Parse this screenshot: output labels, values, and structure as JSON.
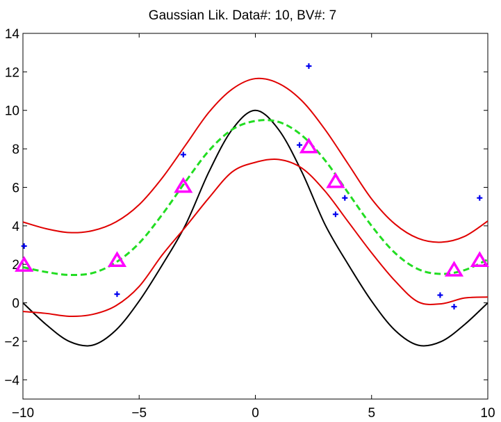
{
  "chart_data": {
    "type": "line",
    "title": "Gaussian Lik.  Data#: 10, BV#: 7",
    "xlabel": "",
    "ylabel": "",
    "xlim": [
      -10,
      10
    ],
    "ylim": [
      -5,
      14
    ],
    "xticks": [
      -10,
      -5,
      0,
      5,
      10
    ],
    "xtick_labels": [
      "−10",
      "−5",
      "0",
      "5",
      "10"
    ],
    "yticks": [
      -4,
      -2,
      0,
      2,
      4,
      6,
      8,
      10,
      12,
      14
    ],
    "ytick_labels": [
      "−4",
      "−2",
      "0",
      "2",
      "4",
      "6",
      "8",
      "10",
      "12",
      "14"
    ],
    "grid": false,
    "colors": {
      "true_function": "#000000",
      "confidence_bounds": "#e00000",
      "predictive_mean": "#22dd22",
      "data_points": "#0000ee",
      "basis_vectors": "#ff00ff"
    },
    "series": [
      {
        "name": "true function",
        "style": "solid",
        "color": "#000000",
        "x": [
          -10,
          -9,
          -8,
          -7,
          -6,
          -5,
          -4,
          -3,
          -2,
          -1,
          0,
          1,
          2,
          3,
          4,
          5,
          6,
          7,
          8,
          9,
          10
        ],
        "y": [
          0.0,
          -1.13,
          -2.01,
          -2.2,
          -1.42,
          0.09,
          1.98,
          4.06,
          6.8,
          9.0,
          10.0,
          9.0,
          6.8,
          4.06,
          1.98,
          0.09,
          -1.42,
          -2.2,
          -2.01,
          -1.13,
          0.0
        ]
      },
      {
        "name": "upper bound",
        "style": "solid",
        "color": "#e00000",
        "x": [
          -10,
          -9,
          -8,
          -7,
          -6,
          -5,
          -4,
          -3,
          -2,
          -1,
          0,
          1,
          2,
          3,
          4,
          5,
          6,
          7,
          8,
          9,
          10
        ],
        "y": [
          4.2,
          3.85,
          3.65,
          3.75,
          4.2,
          5.1,
          6.5,
          8.2,
          9.9,
          11.1,
          11.65,
          11.4,
          10.5,
          9.0,
          7.2,
          5.4,
          4.1,
          3.35,
          3.15,
          3.45,
          4.25
        ]
      },
      {
        "name": "lower bound",
        "style": "solid",
        "color": "#e00000",
        "x": [
          -10,
          -9,
          -8,
          -7,
          -6,
          -5,
          -4,
          -3,
          -2,
          -1,
          0,
          1,
          2,
          3,
          4,
          5,
          6,
          7,
          8,
          9,
          10
        ],
        "y": [
          -0.45,
          -0.55,
          -0.7,
          -0.6,
          -0.15,
          0.85,
          2.5,
          3.95,
          5.45,
          6.8,
          7.3,
          7.45,
          7.0,
          5.8,
          4.2,
          2.6,
          1.15,
          0.05,
          -0.05,
          0.25,
          0.3
        ]
      },
      {
        "name": "predictive mean",
        "style": "dashed",
        "color": "#22dd22",
        "x": [
          -10,
          -9,
          -8,
          -7,
          -6,
          -5,
          -4,
          -3,
          -2,
          -1,
          0,
          1,
          2,
          3,
          4,
          5,
          6,
          7,
          8,
          9,
          10
        ],
        "y": [
          1.85,
          1.6,
          1.45,
          1.55,
          2.1,
          3.1,
          4.6,
          6.3,
          7.9,
          9.0,
          9.45,
          9.4,
          8.7,
          7.4,
          5.7,
          4.0,
          2.6,
          1.75,
          1.5,
          1.7,
          2.25
        ]
      }
    ],
    "points": [
      {
        "name": "data points",
        "marker": "+",
        "color": "#0000ee",
        "x": [
          -9.95,
          -5.95,
          -3.1,
          1.9,
          2.3,
          3.45,
          3.85,
          7.95,
          8.55,
          9.65
        ],
        "y": [
          2.95,
          0.45,
          7.7,
          8.2,
          12.3,
          4.6,
          5.45,
          0.4,
          -0.2,
          5.45
        ]
      },
      {
        "name": "basis vectors",
        "marker": "triangle",
        "color": "#ff00ff",
        "x": [
          -9.95,
          -5.95,
          -3.1,
          2.3,
          3.45,
          8.55,
          9.65
        ],
        "y": [
          1.95,
          2.2,
          6.05,
          8.1,
          6.3,
          1.7,
          2.2
        ]
      }
    ]
  }
}
